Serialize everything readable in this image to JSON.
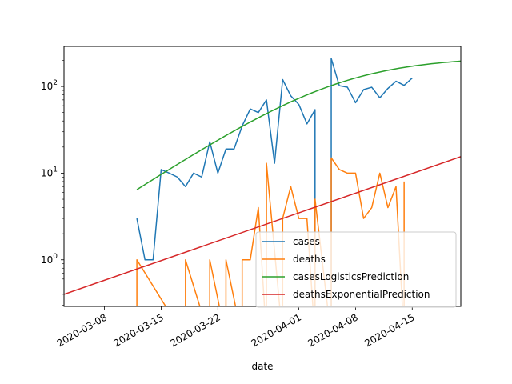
{
  "chart_data": {
    "type": "line",
    "xlabel": "date",
    "ylabel": "",
    "yscale": "log",
    "xlim": [
      "2020-03-03",
      "2020-04-21"
    ],
    "ylim": [
      0.29,
      290
    ],
    "grid": false,
    "legend_position": "lower-right",
    "x_ticks": [
      "2020-03-08",
      "2020-03-15",
      "2020-03-22",
      "2020-04-01",
      "2020-04-08",
      "2020-04-15"
    ],
    "y_ticks": [
      {
        "value": 1,
        "base": "10",
        "exp": "0"
      },
      {
        "value": 10,
        "base": "10",
        "exp": "1"
      },
      {
        "value": 100,
        "base": "10",
        "exp": "2"
      }
    ],
    "series": [
      {
        "name": "cases",
        "color": "#1f77b4",
        "x": [
          "2020-03-12",
          "2020-03-13",
          "2020-03-14",
          "2020-03-15",
          "2020-03-16",
          "2020-03-17",
          "2020-03-18",
          "2020-03-19",
          "2020-03-20",
          "2020-03-21",
          "2020-03-22",
          "2020-03-23",
          "2020-03-24",
          "2020-03-25",
          "2020-03-26",
          "2020-03-27",
          "2020-03-28",
          "2020-03-29",
          "2020-03-30",
          "2020-03-31",
          "2020-04-01",
          "2020-04-02",
          "2020-04-03",
          "2020-04-05",
          "2020-04-06",
          "2020-04-07",
          "2020-04-08",
          "2020-04-09",
          "2020-04-10",
          "2020-04-11",
          "2020-04-12",
          "2020-04-13",
          "2020-04-14",
          "2020-04-15"
        ],
        "y": [
          3,
          1,
          1,
          11,
          10,
          9,
          7,
          10,
          9,
          23,
          10,
          19,
          19,
          35,
          55,
          50,
          70,
          13,
          120,
          78,
          62,
          37,
          54,
          210,
          102,
          98,
          65,
          92,
          98,
          74,
          95,
          115,
          103,
          125
        ],
        "gap_after_index": 22
      },
      {
        "name": "deaths",
        "color": "#ff7f0e",
        "x": [
          "2020-03-12",
          "2020-03-18",
          "2020-03-21",
          "2020-03-23",
          "2020-03-25",
          "2020-03-26",
          "2020-03-27",
          "2020-03-28",
          "2020-03-30",
          "2020-03-31",
          "2020-04-01",
          "2020-04-02",
          "2020-04-03",
          "2020-04-05",
          "2020-04-06",
          "2020-04-07",
          "2020-04-08",
          "2020-04-09",
          "2020-04-10",
          "2020-04-11",
          "2020-04-12",
          "2020-04-13",
          "2020-04-14"
        ],
        "y": [
          1,
          1,
          1,
          1,
          1,
          1,
          4,
          13,
          3,
          7,
          3,
          3,
          5,
          15,
          11,
          10,
          10,
          3,
          4,
          10,
          4,
          7,
          8
        ],
        "zero_dates": [
          "2020-03-12",
          "2020-03-18",
          "2020-03-21",
          "2020-03-23",
          "2020-03-25",
          "2020-03-28",
          "2020-03-30",
          "2020-04-03",
          "2020-04-05",
          "2020-04-14"
        ]
      },
      {
        "name": "casesLogisticsPrediction",
        "color": "#2ca02c",
        "kind": "logistic",
        "x_start": "2020-03-12",
        "x_end": "2020-04-21",
        "capacity": 220,
        "rate": 0.14,
        "midpoint": "2020-04-06"
      },
      {
        "name": "deathsExponentialPrediction",
        "color": "#d62728",
        "kind": "exponential",
        "x_start": "2020-03-03",
        "x_end": "2020-04-21",
        "y_start": 0.4,
        "y_end": 15.5
      }
    ]
  }
}
